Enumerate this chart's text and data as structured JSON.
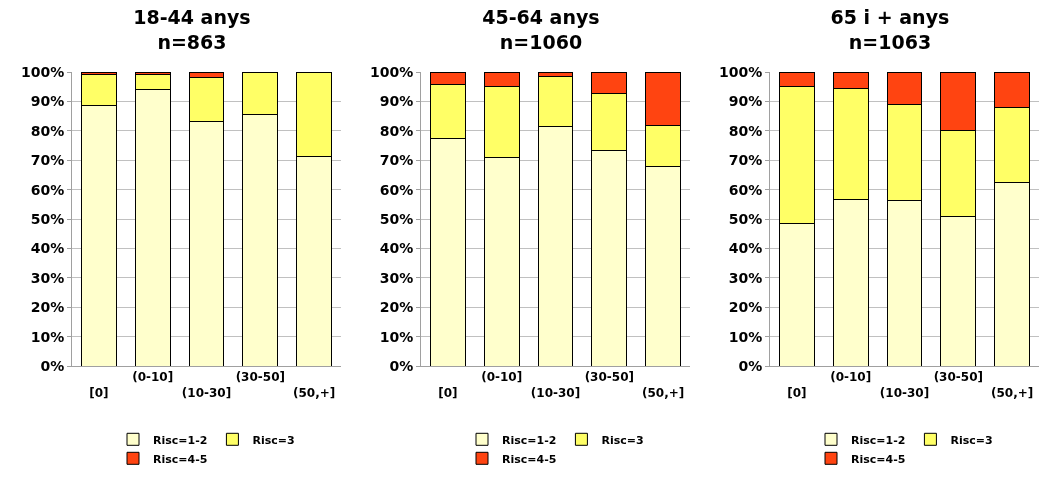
{
  "chart_data": [
    {
      "type": "bar",
      "stacked": true,
      "title": "18-44 anys\nn=863",
      "categories": [
        "[0]",
        "(0-10]",
        "(10-30]",
        "(30-50]",
        "(50,+]"
      ],
      "series": [
        {
          "name": "Risc=1-2",
          "color": "#ffffcc",
          "values": [
            88.5,
            94,
            83.3,
            85.7,
            71.4
          ]
        },
        {
          "name": "Risc=3",
          "color": "#ffff66",
          "values": [
            10.5,
            5.3,
            14.7,
            14.3,
            28.6
          ]
        },
        {
          "name": "Risc=4-5",
          "color": "#ff4411",
          "values": [
            1,
            0.7,
            2,
            0,
            0
          ]
        }
      ],
      "ylim": [
        0,
        100
      ],
      "yticks": [
        {
          "value": 0,
          "label": "0%"
        },
        {
          "value": 10,
          "label": "10%"
        },
        {
          "value": 20,
          "label": "20%"
        },
        {
          "value": 30,
          "label": "30%"
        },
        {
          "value": 40,
          "label": "40%"
        },
        {
          "value": 50,
          "label": "50%"
        },
        {
          "value": 60,
          "label": "60%"
        },
        {
          "value": 70,
          "label": "70%"
        },
        {
          "value": 80,
          "label": "80%"
        },
        {
          "value": 90,
          "label": "90%"
        },
        {
          "value": 100,
          "label": "100%"
        }
      ],
      "grid": "y",
      "legend": "bottom"
    },
    {
      "type": "bar",
      "stacked": true,
      "title": "45-64 anys\nn=1060",
      "categories": [
        "[0]",
        "(0-10]",
        "(10-30]",
        "(30-50]",
        "(50,+]"
      ],
      "series": [
        {
          "name": "Risc=1-2",
          "color": "#ffffcc",
          "values": [
            77.4,
            71,
            81.5,
            73.2,
            68
          ]
        },
        {
          "name": "Risc=3",
          "color": "#ffff66",
          "values": [
            18.3,
            24.1,
            17.1,
            19.5,
            13.8
          ]
        },
        {
          "name": "Risc=4-5",
          "color": "#ff4411",
          "values": [
            4.3,
            4.9,
            1.4,
            7.3,
            18.2
          ]
        }
      ],
      "ylim": [
        0,
        100
      ],
      "yticks": [
        {
          "value": 0,
          "label": "0%"
        },
        {
          "value": 10,
          "label": "10%"
        },
        {
          "value": 20,
          "label": "20%"
        },
        {
          "value": 30,
          "label": "30%"
        },
        {
          "value": 40,
          "label": "40%"
        },
        {
          "value": 50,
          "label": "50%"
        },
        {
          "value": 60,
          "label": "60%"
        },
        {
          "value": 70,
          "label": "70%"
        },
        {
          "value": 80,
          "label": "80%"
        },
        {
          "value": 90,
          "label": "90%"
        },
        {
          "value": 100,
          "label": "100%"
        }
      ],
      "grid": "y",
      "legend": "bottom"
    },
    {
      "type": "bar",
      "stacked": true,
      "title": "65 i + anys\nn=1063",
      "categories": [
        "[0]",
        "(0-10]",
        "(10-30]",
        "(30-50]",
        "(50,+]"
      ],
      "series": [
        {
          "name": "Risc=1-2",
          "color": "#ffffcc",
          "values": [
            48.5,
            56.8,
            56.3,
            51,
            62.3
          ]
        },
        {
          "name": "Risc=3",
          "color": "#ffff66",
          "values": [
            46.7,
            37.6,
            32.5,
            29,
            25.7
          ]
        },
        {
          "name": "Risc=4-5",
          "color": "#ff4411",
          "values": [
            4.8,
            5.6,
            11.2,
            20,
            12
          ]
        }
      ],
      "ylim": [
        0,
        100
      ],
      "yticks": [
        {
          "value": 0,
          "label": "0%"
        },
        {
          "value": 10,
          "label": "10%"
        },
        {
          "value": 20,
          "label": "20%"
        },
        {
          "value": 30,
          "label": "30%"
        },
        {
          "value": 40,
          "label": "40%"
        },
        {
          "value": 50,
          "label": "50%"
        },
        {
          "value": 60,
          "label": "60%"
        },
        {
          "value": 70,
          "label": "70%"
        },
        {
          "value": 80,
          "label": "80%"
        },
        {
          "value": 90,
          "label": "90%"
        },
        {
          "value": 100,
          "label": "100%"
        }
      ],
      "grid": "y",
      "legend": "bottom"
    }
  ]
}
